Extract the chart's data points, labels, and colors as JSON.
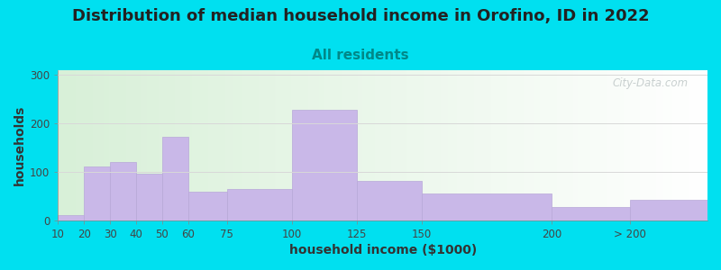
{
  "title": "Distribution of median household income in Orofino, ID in 2022",
  "subtitle": "All residents",
  "xlabel": "household income ($1000)",
  "ylabel": "households",
  "bar_left_edges": [
    10,
    20,
    30,
    40,
    50,
    60,
    75,
    100,
    125,
    150,
    200,
    230
  ],
  "bar_right_edges": [
    20,
    30,
    40,
    50,
    60,
    75,
    100,
    125,
    150,
    200,
    230,
    260
  ],
  "bar_values": [
    10,
    112,
    120,
    97,
    172,
    60,
    65,
    228,
    82,
    55,
    28,
    43
  ],
  "tick_positions": [
    10,
    20,
    30,
    40,
    50,
    60,
    75,
    100,
    125,
    150,
    200,
    230
  ],
  "tick_labels": [
    "10",
    "20",
    "30",
    "40",
    "50",
    "60",
    "75",
    "100",
    "125",
    "150",
    "200",
    "> 200"
  ],
  "bar_color": "#c9b8e8",
  "bar_edge_color": "#b8a8d8",
  "ylim": [
    0,
    310
  ],
  "xlim": [
    10,
    260
  ],
  "yticks": [
    0,
    100,
    200,
    300
  ],
  "bg_color_outer": "#00e0f0",
  "title_fontsize": 13,
  "subtitle_fontsize": 11,
  "subtitle_color": "#008888",
  "axis_label_fontsize": 10,
  "watermark_text": "City-Data.com",
  "watermark_color": "#c0c8c8",
  "grid_color": "#d8d8d8"
}
